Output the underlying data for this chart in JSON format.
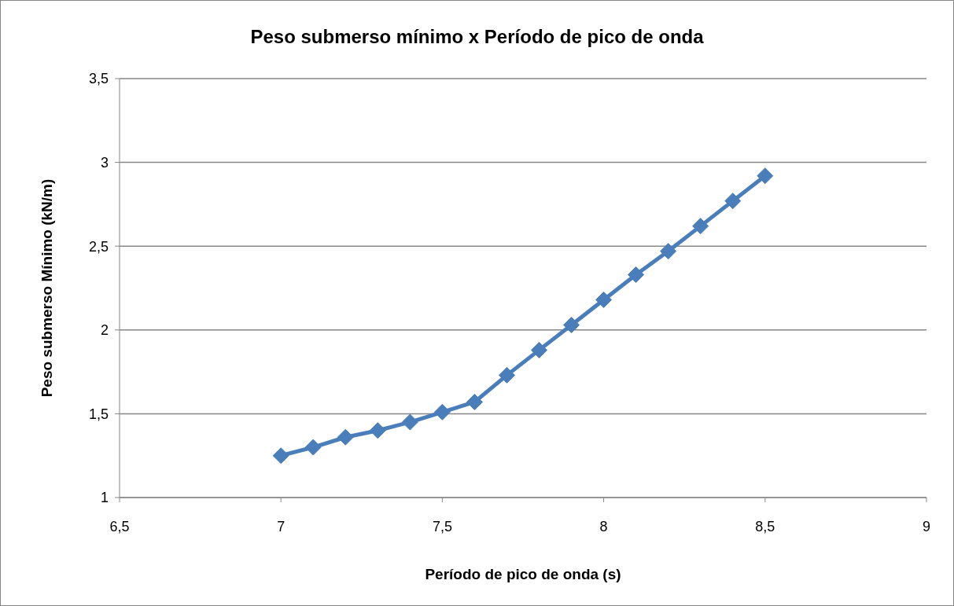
{
  "chart_data": {
    "type": "line",
    "title": "Peso submerso mínimo x Período de pico de onda",
    "xlabel": "Período de pico de onda (s)",
    "ylabel": "Peso submerso Mínimo (kN/m)",
    "x": [
      7,
      7.1,
      7.2,
      7.3,
      7.4,
      7.5,
      7.6,
      7.7,
      7.8,
      7.9,
      8,
      8.1,
      8.2,
      8.3,
      8.4,
      8.5
    ],
    "series": [
      {
        "color": "#4a7ebb",
        "values": [
          1.25,
          1.3,
          1.36,
          1.4,
          1.45,
          1.51,
          1.57,
          1.73,
          1.88,
          2.03,
          2.18,
          2.33,
          2.47,
          2.62,
          2.77,
          2.92
        ]
      }
    ],
    "xlim": [
      6.5,
      9
    ],
    "xticks": [
      {
        "value": 6.5,
        "label": "6,5"
      },
      7,
      {
        "value": 7.5,
        "label": "7,5"
      },
      8,
      {
        "value": 8.5,
        "label": "8,5"
      },
      9
    ],
    "ylim": [
      1,
      3.5
    ],
    "yticks": [
      1,
      {
        "value": 1.5,
        "label": "1,5"
      },
      2,
      {
        "value": 2.5,
        "label": "2,5"
      },
      3,
      {
        "value": 3.5,
        "label": "3,5"
      }
    ],
    "grid": "y",
    "marker": "diamond",
    "line_style": "solid"
  }
}
